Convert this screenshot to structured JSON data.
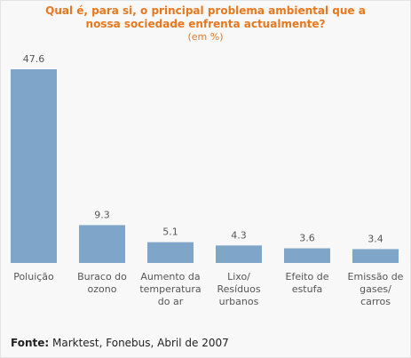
{
  "chart_data": {
    "type": "bar",
    "title_lines": [
      "Qual é, para si, o principal problema ambiental que a",
      "nossa sociedade enfrenta actualmente?"
    ],
    "subtitle": "(em %)",
    "categories": [
      [
        "Poluição"
      ],
      [
        "Buraco do",
        "ozono"
      ],
      [
        "Aumento da",
        "temperatura",
        "do ar"
      ],
      [
        "Lixo/",
        "Resíduos",
        "urbanos"
      ],
      [
        "Efeito de",
        "estufa"
      ],
      [
        "Emissão de",
        "gases/",
        "carros"
      ]
    ],
    "values": [
      47.6,
      9.3,
      5.1,
      4.3,
      3.6,
      3.4
    ],
    "value_labels": [
      "47.6",
      "9.3",
      "5.1",
      "4.3",
      "3.6",
      "3.4"
    ],
    "bar_color": "#7fa6c9",
    "title_color": "#e8781e",
    "ylim": [
      0,
      47.6
    ],
    "grid": false
  },
  "footer": {
    "source_label": "Fonte:",
    "source_text": " Marktest, Fonebus, Abril de 2007"
  }
}
